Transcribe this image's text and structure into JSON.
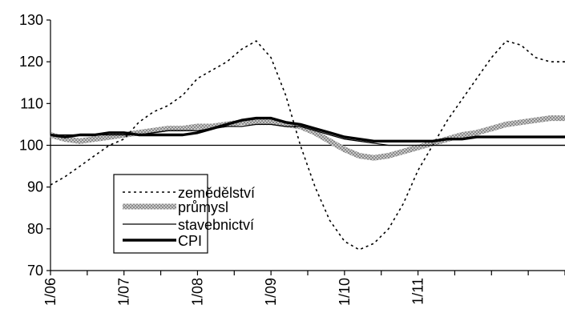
{
  "chart_data": {
    "type": "line",
    "title": "",
    "xlabel": "",
    "ylabel": "",
    "ylim": [
      70,
      130
    ],
    "yticks": [
      70,
      80,
      90,
      100,
      110,
      120,
      130
    ],
    "xtick_labels": [
      "1/06",
      "1/07",
      "1/08",
      "1/09",
      "1/10",
      "1/11"
    ],
    "xlim": [
      0,
      70
    ],
    "reference_line": 100,
    "grid": false,
    "legend_position": "bottom-left-inside",
    "colors": {
      "axis": "#000000",
      "agri": "#000000",
      "ind": "#a0a0a0",
      "constr": "#000000",
      "cpi": "#000000"
    },
    "x": [
      0,
      2,
      4,
      6,
      8,
      10,
      12,
      14,
      16,
      18,
      20,
      22,
      24,
      26,
      28,
      30,
      32,
      34,
      36,
      38,
      40,
      42,
      44,
      46,
      48,
      50,
      52,
      54,
      56,
      58,
      60,
      62,
      64,
      66,
      68,
      70
    ],
    "series": [
      {
        "name": "zemědělství",
        "style": "dotted",
        "values": [
          90.5,
          92.5,
          95,
          97.5,
          100,
          101.5,
          105.5,
          108,
          109.5,
          112,
          116,
          118,
          120,
          123,
          125,
          121,
          112,
          100,
          90,
          82,
          77,
          75,
          76.5,
          80,
          86,
          94,
          100,
          106,
          111,
          116,
          121,
          125,
          124,
          121,
          120,
          120
        ]
      },
      {
        "name": "průmysl",
        "style": "hatched",
        "values": [
          102.5,
          101.5,
          101,
          101.5,
          102,
          102.5,
          103,
          103.5,
          104,
          104,
          104.5,
          104.5,
          105,
          105.5,
          105.5,
          105.5,
          105,
          104.5,
          103,
          101,
          99,
          97.5,
          97,
          97.5,
          98.5,
          99.5,
          100.5,
          101.5,
          102.5,
          103,
          104,
          105,
          105.5,
          106,
          106.5,
          106.5
        ]
      },
      {
        "name": "stavebnictví",
        "style": "thin",
        "values": [
          102.5,
          102.5,
          102.5,
          102.5,
          102.5,
          102.5,
          102.5,
          103,
          103.5,
          103.5,
          103.5,
          104,
          104.5,
          104.5,
          105,
          105,
          104.5,
          104.5,
          103.5,
          102.5,
          101.5,
          101,
          100.5,
          100,
          100,
          100,
          100,
          100,
          100,
          100,
          100,
          100,
          100,
          100,
          100,
          100
        ]
      },
      {
        "name": "CPI",
        "style": "thick",
        "values": [
          102.5,
          102,
          102.5,
          102.5,
          103,
          103,
          102.5,
          102.5,
          102.5,
          102.5,
          103,
          104,
          105,
          106,
          106.5,
          106.5,
          105.5,
          105,
          104,
          103,
          102,
          101.5,
          101,
          101,
          101,
          101,
          101,
          101.5,
          101.5,
          102,
          102,
          102,
          102,
          102,
          102,
          102
        ]
      }
    ]
  }
}
